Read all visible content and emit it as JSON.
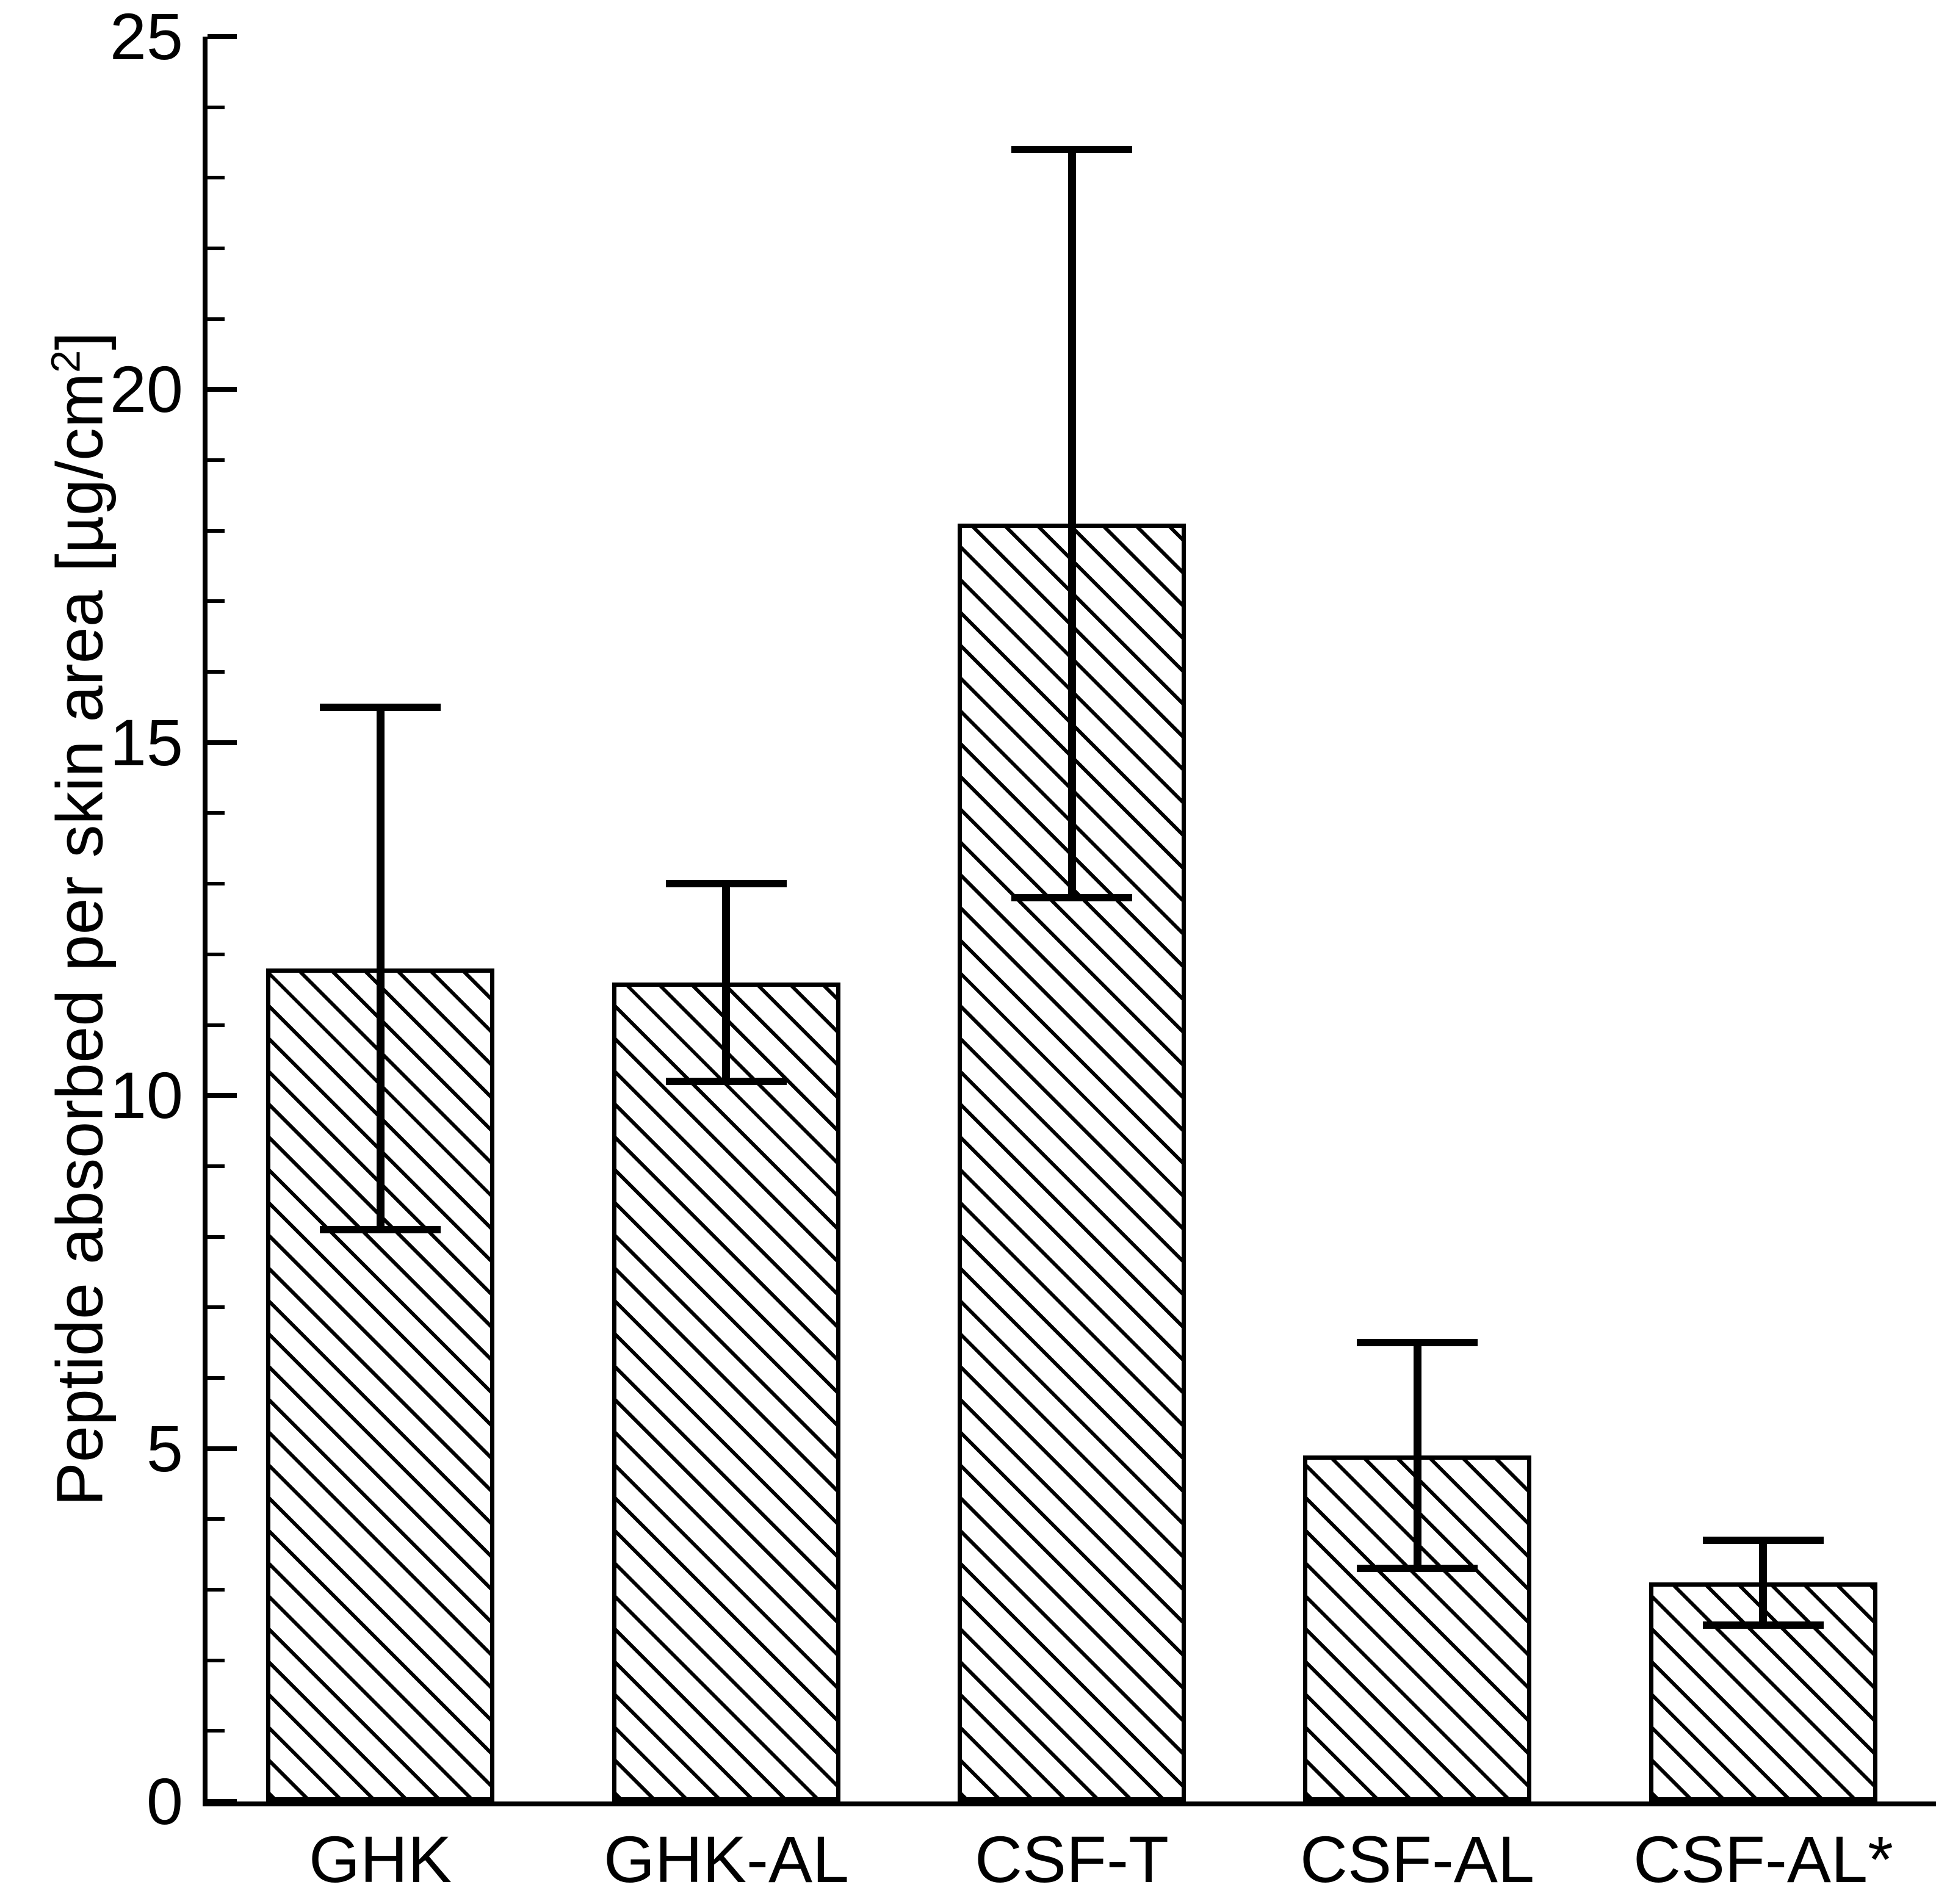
{
  "figure": {
    "background_color": "#ffffff",
    "line_color": "#000000"
  },
  "chart_data": {
    "type": "bar",
    "title": "",
    "xlabel": "",
    "ylabel": "Peptide absorbed per skin area [µg/cm²]",
    "ylabel_parts": {
      "main": "Peptide absorbed per skin area [µg/cm",
      "sup": "2",
      "end": "]"
    },
    "categories": [
      "GHK",
      "GHK-AL",
      "CSF-T",
      "CSF-AL",
      "CSF-AL*"
    ],
    "values": [
      11.8,
      11.6,
      18.1,
      4.9,
      3.1
    ],
    "error_bars": [
      3.7,
      1.4,
      5.3,
      1.6,
      0.6
    ],
    "error_cap_values_high": [
      15.5,
      13.0,
      23.4,
      6.5,
      3.7
    ],
    "error_cap_values_low": [
      8.1,
      10.2,
      12.8,
      3.3,
      2.5
    ],
    "ylim": [
      0,
      25
    ],
    "ytick_major_step": 5,
    "ytick_minor_step": 1,
    "ytick_labels": [
      "0",
      "5",
      "10",
      "15",
      "20",
      "25"
    ],
    "grid": false,
    "legend": false,
    "bar_fill": "#ffffff",
    "bar_hatch": "diagonal-backslash",
    "bar_edge_color": "#000000",
    "error_bar_color": "#000000"
  }
}
